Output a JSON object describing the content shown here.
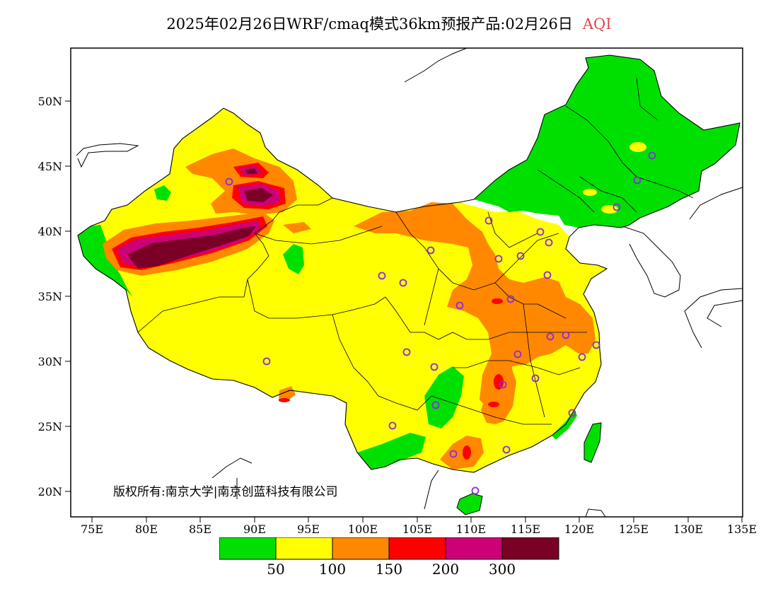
{
  "header": {
    "title": "2025年02月26日WRF/cmaq模式36km预报产品:02月26日",
    "variable": "AQI",
    "variable_color": "#e0474f"
  },
  "axes": {
    "lat_labels": [
      "50N",
      "45N",
      "40N",
      "35N",
      "30N",
      "25N",
      "20N"
    ],
    "lon_labels": [
      "75E",
      "80E",
      "85E",
      "90E",
      "95E",
      "100E",
      "105E",
      "110E",
      "115E",
      "120E",
      "125E",
      "130E",
      "135E"
    ]
  },
  "copyright": "版权所有:南京大学|南京创蓝科技有限公司",
  "legend": {
    "colors": [
      "#00e000",
      "#ffff00",
      "#ff8800",
      "#ff0000",
      "#cc0077",
      "#7a0026"
    ],
    "labels": [
      "50",
      "100",
      "150",
      "200",
      "300"
    ]
  },
  "palette": {
    "good": "#00e000",
    "moderate": "#ffff00",
    "unhealthy_sensitive": "#ff8800",
    "unhealthy": "#ff0000",
    "very_unhealthy": "#cc0077",
    "hazardous": "#7a0026",
    "station_marker": "#8a2be2"
  }
}
